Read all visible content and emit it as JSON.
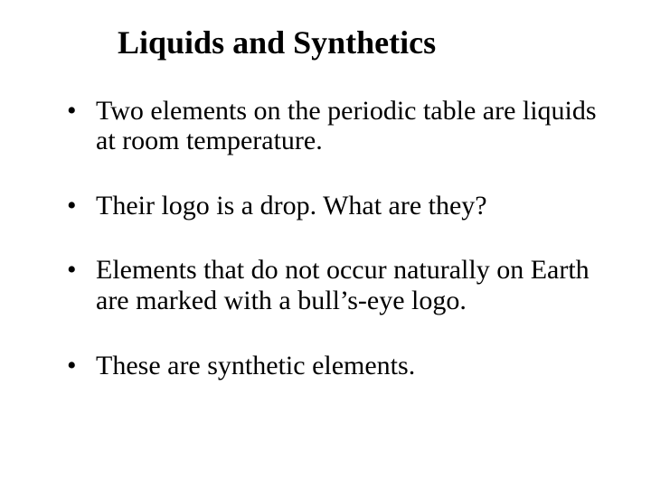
{
  "title": "Liquids and Synthetics",
  "bullets": [
    "Two elements on the periodic table are liquids at room temperature.",
    "Their logo is a drop.  What are they?",
    "Elements that do not occur naturally on Earth are marked with a bull’s-eye logo.",
    "These are synthetic elements."
  ],
  "style": {
    "background_color": "#ffffff",
    "text_color": "#000000",
    "font_family": "Times New Roman",
    "title_fontsize": 36,
    "title_fontweight": "bold",
    "body_fontsize": 30,
    "bullet_char": "•"
  }
}
